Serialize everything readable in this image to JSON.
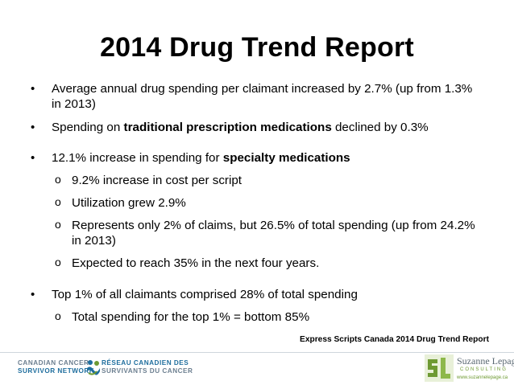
{
  "slide": {
    "title": "2014 Drug Trend Report",
    "bullets": [
      {
        "id": "b1",
        "text": "Average annual drug spending per claimant increased by 2.7% (up from 1.3% in 2013)"
      },
      {
        "id": "b2",
        "prefix": "Spending on ",
        "bold": "traditional prescription medications",
        "suffix": " declined by 0.3%"
      },
      {
        "id": "b3",
        "prefix": "12.1% increase in spending for ",
        "bold": "specialty medications",
        "subs": [
          "9.2% increase in cost per script",
          "Utilization grew  2.9%",
          "Represents only 2% of claims, but 26.5% of total spending (up from 24.2% in 2013)",
          "Expected to reach 35% in the next four years."
        ]
      },
      {
        "id": "b4",
        "text": "Top 1% of all claimants comprised 28% of total spending",
        "subs": [
          "Total spending for the top 1% =  bottom 85%"
        ]
      }
    ],
    "source": "Express Scripts Canada 2014 Drug Trend Report"
  },
  "footer": {
    "ccsn": {
      "en_line1": "CANADIAN CANCER",
      "en_line2": "SURVIVOR NETWORK",
      "fr_line1": "RÉSEAU CANADIEN DES",
      "fr_line2": "SURVIVANTS DU CANCER"
    },
    "suzanne": {
      "name": "Suzanne Lepage",
      "subtitle": "CONSULTING",
      "url": "www.suzannelepage.ca"
    },
    "colors": {
      "ccsn_blue": "#1f6e9e",
      "ccsn_grey": "#6c7f90",
      "sl_green": "#6e9a32"
    }
  }
}
